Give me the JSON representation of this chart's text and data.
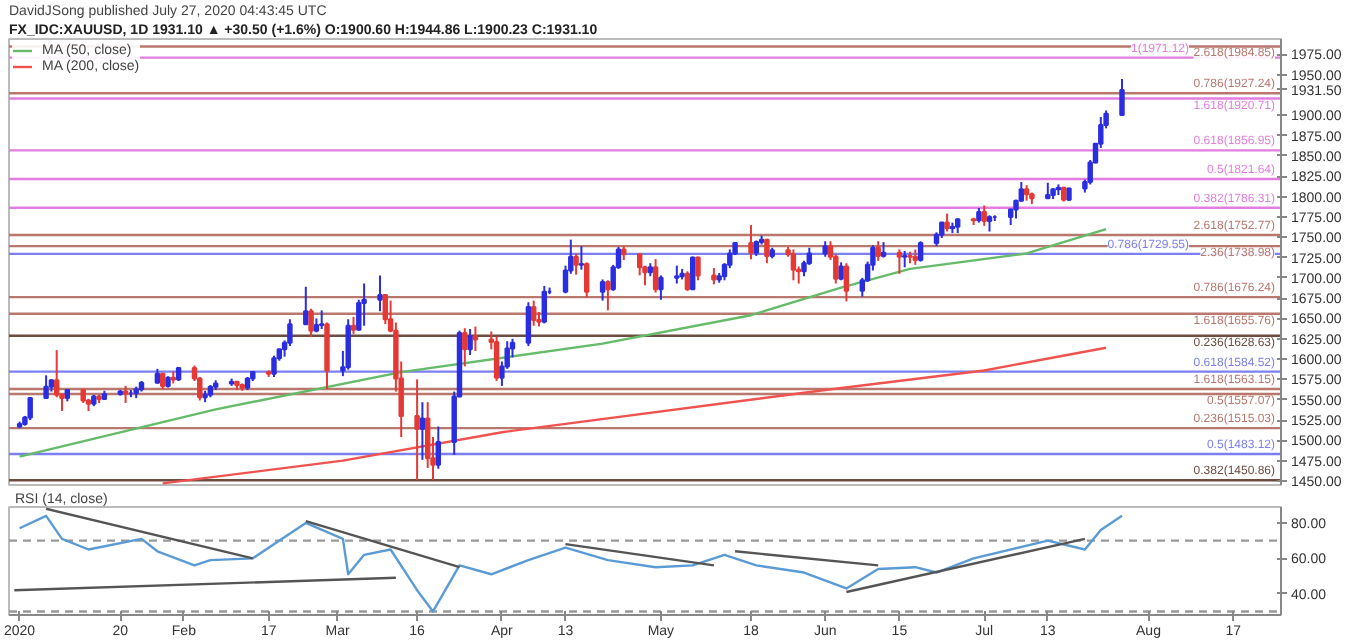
{
  "chart_data": [
    {
      "type": "candlestick",
      "title": "DavidJSong published July 27, 2020 04:43:45 UTC",
      "subtitle": "FX_IDC:XAUUSD, 1D 1931.10 ▲ +30.50 (+1.6%) O:1900.60 H:1944.86 L:1900.23 C:1931.10",
      "x": [
        "2020-01-01",
        "2020-01-02",
        "2020-01-03",
        "2020-01-06",
        "2020-01-07",
        "2020-01-08",
        "2020-01-09",
        "2020-01-10",
        "2020-01-13",
        "2020-01-14",
        "2020-01-15",
        "2020-01-16",
        "2020-01-17",
        "2020-01-20",
        "2020-01-21",
        "2020-01-22",
        "2020-01-23",
        "2020-01-24",
        "2020-01-27",
        "2020-01-28",
        "2020-01-29",
        "2020-01-30",
        "2020-01-31",
        "2020-02-03",
        "2020-02-04",
        "2020-02-05",
        "2020-02-06",
        "2020-02-07",
        "2020-02-10",
        "2020-02-11",
        "2020-02-12",
        "2020-02-13",
        "2020-02-14",
        "2020-02-17",
        "2020-02-18",
        "2020-02-19",
        "2020-02-20",
        "2020-02-21",
        "2020-02-24",
        "2020-02-25",
        "2020-02-26",
        "2020-02-27",
        "2020-02-28",
        "2020-03-02",
        "2020-03-03",
        "2020-03-04",
        "2020-03-05",
        "2020-03-06",
        "2020-03-09",
        "2020-03-10",
        "2020-03-11",
        "2020-03-12",
        "2020-03-13",
        "2020-03-16",
        "2020-03-17",
        "2020-03-18",
        "2020-03-19",
        "2020-03-20",
        "2020-03-23",
        "2020-03-24",
        "2020-03-25",
        "2020-03-26",
        "2020-03-27",
        "2020-03-30",
        "2020-03-31",
        "2020-04-01",
        "2020-04-02",
        "2020-04-03",
        "2020-04-06",
        "2020-04-07",
        "2020-04-08",
        "2020-04-09",
        "2020-04-10",
        "2020-04-13",
        "2020-04-14",
        "2020-04-15",
        "2020-04-16",
        "2020-04-17",
        "2020-04-20",
        "2020-04-21",
        "2020-04-22",
        "2020-04-23",
        "2020-04-24",
        "2020-04-27",
        "2020-04-28",
        "2020-04-29",
        "2020-04-30",
        "2020-05-01",
        "2020-05-04",
        "2020-05-05",
        "2020-05-06",
        "2020-05-07",
        "2020-05-08",
        "2020-05-11",
        "2020-05-12",
        "2020-05-13",
        "2020-05-14",
        "2020-05-15",
        "2020-05-18",
        "2020-05-19",
        "2020-05-20",
        "2020-05-21",
        "2020-05-22",
        "2020-05-25",
        "2020-05-26",
        "2020-05-27",
        "2020-05-28",
        "2020-05-29",
        "2020-06-01",
        "2020-06-02",
        "2020-06-03",
        "2020-06-04",
        "2020-06-05",
        "2020-06-08",
        "2020-06-09",
        "2020-06-10",
        "2020-06-11",
        "2020-06-12",
        "2020-06-15",
        "2020-06-16",
        "2020-06-17",
        "2020-06-18",
        "2020-06-19",
        "2020-06-22",
        "2020-06-23",
        "2020-06-24",
        "2020-06-25",
        "2020-06-26",
        "2020-06-29",
        "2020-06-30",
        "2020-07-01",
        "2020-07-02",
        "2020-07-03",
        "2020-07-06",
        "2020-07-07",
        "2020-07-08",
        "2020-07-09",
        "2020-07-10",
        "2020-07-13",
        "2020-07-14",
        "2020-07-15",
        "2020-07-16",
        "2020-07-17",
        "2020-07-20",
        "2020-07-21",
        "2020-07-22",
        "2020-07-23",
        "2020-07-24",
        "2020-07-27"
      ],
      "ohlc": [
        [
          1517,
          1523,
          1515,
          1520
        ],
        [
          1520,
          1530,
          1518,
          1528
        ],
        [
          1528,
          1553,
          1525,
          1552
        ],
        [
          1552,
          1580,
          1552,
          1566
        ],
        [
          1566,
          1575,
          1560,
          1574
        ],
        [
          1574,
          1611,
          1553,
          1556
        ],
        [
          1556,
          1558,
          1536,
          1552
        ],
        [
          1552,
          1563,
          1548,
          1562
        ],
        [
          1562,
          1563,
          1546,
          1549
        ],
        [
          1549,
          1551,
          1536,
          1545
        ],
        [
          1545,
          1556,
          1542,
          1554
        ],
        [
          1554,
          1556,
          1546,
          1551
        ],
        [
          1551,
          1561,
          1550,
          1557
        ],
        [
          1557,
          1562,
          1555,
          1560
        ],
        [
          1560,
          1567,
          1546,
          1558
        ],
        [
          1558,
          1562,
          1553,
          1558
        ],
        [
          1558,
          1566,
          1552,
          1563
        ],
        [
          1563,
          1573,
          1560,
          1571
        ],
        [
          1571,
          1588,
          1570,
          1582
        ],
        [
          1582,
          1583,
          1563,
          1567
        ],
        [
          1567,
          1579,
          1565,
          1577
        ],
        [
          1577,
          1585,
          1570,
          1575
        ],
        [
          1575,
          1589,
          1573,
          1589
        ],
        [
          1589,
          1592,
          1573,
          1576
        ],
        [
          1576,
          1578,
          1549,
          1553
        ],
        [
          1553,
          1561,
          1547,
          1556
        ],
        [
          1556,
          1568,
          1553,
          1566
        ],
        [
          1566,
          1574,
          1562,
          1570
        ],
        [
          1570,
          1576,
          1567,
          1572
        ],
        [
          1572,
          1573,
          1562,
          1568
        ],
        [
          1568,
          1570,
          1561,
          1565
        ],
        [
          1565,
          1578,
          1562,
          1576
        ],
        [
          1576,
          1585,
          1573,
          1584
        ],
        [
          1584,
          1586,
          1578,
          1582
        ],
        [
          1582,
          1604,
          1578,
          1601
        ],
        [
          1601,
          1612,
          1598,
          1612
        ],
        [
          1612,
          1623,
          1603,
          1620
        ],
        [
          1620,
          1649,
          1616,
          1643
        ],
        [
          1643,
          1689,
          1642,
          1659
        ],
        [
          1659,
          1662,
          1627,
          1635
        ],
        [
          1635,
          1650,
          1633,
          1642
        ],
        [
          1642,
          1660,
          1637,
          1643
        ],
        [
          1643,
          1645,
          1563,
          1586
        ],
        [
          1586,
          1610,
          1579,
          1590
        ],
        [
          1590,
          1649,
          1587,
          1641
        ],
        [
          1641,
          1652,
          1631,
          1636
        ],
        [
          1636,
          1673,
          1635,
          1669
        ],
        [
          1669,
          1693,
          1641,
          1673
        ],
        [
          1673,
          1703,
          1659,
          1679
        ],
        [
          1679,
          1680,
          1643,
          1649
        ],
        [
          1649,
          1672,
          1633,
          1635
        ],
        [
          1635,
          1645,
          1560,
          1576
        ],
        [
          1576,
          1597,
          1504,
          1530
        ],
        [
          1530,
          1575,
          1451,
          1514
        ],
        [
          1514,
          1547,
          1476,
          1527
        ],
        [
          1527,
          1547,
          1466,
          1478
        ],
        [
          1478,
          1504,
          1451,
          1470
        ],
        [
          1470,
          1517,
          1465,
          1498
        ],
        [
          1498,
          1560,
          1482,
          1554
        ],
        [
          1554,
          1635,
          1553,
          1632
        ],
        [
          1632,
          1638,
          1591,
          1612
        ],
        [
          1612,
          1637,
          1605,
          1628
        ],
        [
          1628,
          1640,
          1610,
          1624
        ],
        [
          1624,
          1634,
          1612,
          1621
        ],
        [
          1621,
          1628,
          1573,
          1577
        ],
        [
          1577,
          1597,
          1567,
          1591
        ],
        [
          1591,
          1622,
          1588,
          1613
        ],
        [
          1613,
          1625,
          1602,
          1620
        ],
        [
          1620,
          1670,
          1616,
          1664
        ],
        [
          1664,
          1672,
          1641,
          1648
        ],
        [
          1648,
          1658,
          1640,
          1646
        ],
        [
          1646,
          1690,
          1644,
          1683
        ],
        [
          1683,
          1688,
          1680,
          1683
        ],
        [
          1683,
          1715,
          1681,
          1709
        ],
        [
          1709,
          1747,
          1705,
          1726
        ],
        [
          1726,
          1730,
          1704,
          1716
        ],
        [
          1716,
          1739,
          1710,
          1717
        ],
        [
          1717,
          1719,
          1676,
          1683
        ],
        [
          1683,
          1698,
          1672,
          1695
        ],
        [
          1695,
          1697,
          1660,
          1686
        ],
        [
          1686,
          1716,
          1684,
          1713
        ],
        [
          1713,
          1738,
          1711,
          1735
        ],
        [
          1735,
          1739,
          1722,
          1729
        ],
        [
          1729,
          1730,
          1703,
          1713
        ],
        [
          1713,
          1715,
          1691,
          1707
        ],
        [
          1707,
          1718,
          1702,
          1713
        ],
        [
          1713,
          1723,
          1682,
          1686
        ],
        [
          1686,
          1703,
          1673,
          1700
        ],
        [
          1700,
          1715,
          1693,
          1702
        ],
        [
          1702,
          1711,
          1698,
          1705
        ],
        [
          1705,
          1708,
          1684,
          1686
        ],
        [
          1686,
          1726,
          1685,
          1725
        ],
        [
          1725,
          1726,
          1697,
          1703
        ],
        [
          1703,
          1712,
          1692,
          1698
        ],
        [
          1698,
          1706,
          1694,
          1702
        ],
        [
          1702,
          1718,
          1697,
          1716
        ],
        [
          1716,
          1735,
          1712,
          1730
        ],
        [
          1730,
          1744,
          1728,
          1743
        ],
        [
          1743,
          1765,
          1723,
          1731
        ],
        [
          1731,
          1746,
          1727,
          1744
        ],
        [
          1744,
          1752,
          1741,
          1747
        ],
        [
          1747,
          1748,
          1718,
          1727
        ],
        [
          1727,
          1737,
          1724,
          1734
        ],
        [
          1734,
          1738,
          1726,
          1729
        ],
        [
          1729,
          1735,
          1697,
          1710
        ],
        [
          1710,
          1714,
          1693,
          1708
        ],
        [
          1708,
          1721,
          1702,
          1718
        ],
        [
          1718,
          1737,
          1716,
          1730
        ],
        [
          1730,
          1745,
          1726,
          1739
        ],
        [
          1739,
          1745,
          1722,
          1726
        ],
        [
          1726,
          1729,
          1693,
          1699
        ],
        [
          1699,
          1719,
          1697,
          1714
        ],
        [
          1714,
          1718,
          1671,
          1684
        ],
        [
          1684,
          1700,
          1677,
          1697
        ],
        [
          1697,
          1720,
          1695,
          1716
        ],
        [
          1716,
          1740,
          1709,
          1737
        ],
        [
          1737,
          1745,
          1721,
          1727
        ],
        [
          1727,
          1744,
          1725,
          1731
        ],
        [
          1731,
          1735,
          1705,
          1726
        ],
        [
          1726,
          1733,
          1713,
          1727
        ],
        [
          1727,
          1732,
          1718,
          1726
        ],
        [
          1726,
          1735,
          1716,
          1722
        ],
        [
          1722,
          1745,
          1720,
          1743
        ],
        [
          1743,
          1756,
          1739,
          1753
        ],
        [
          1753,
          1768,
          1749,
          1768
        ],
        [
          1768,
          1779,
          1757,
          1761
        ],
        [
          1761,
          1768,
          1755,
          1763
        ],
        [
          1763,
          1773,
          1755,
          1772
        ],
        [
          1772,
          1774,
          1765,
          1771
        ],
        [
          1771,
          1786,
          1768,
          1781
        ],
        [
          1781,
          1789,
          1764,
          1770
        ],
        [
          1770,
          1777,
          1757,
          1775
        ],
        [
          1775,
          1777,
          1770,
          1775
        ],
        [
          1775,
          1785,
          1765,
          1784
        ],
        [
          1784,
          1796,
          1773,
          1795
        ],
        [
          1795,
          1818,
          1794,
          1809
        ],
        [
          1809,
          1814,
          1795,
          1803
        ],
        [
          1803,
          1805,
          1791,
          1798
        ],
        [
          1798,
          1817,
          1798,
          1802
        ],
        [
          1802,
          1810,
          1797,
          1809
        ],
        [
          1809,
          1815,
          1802,
          1811
        ],
        [
          1811,
          1812,
          1794,
          1796
        ],
        [
          1796,
          1811,
          1795,
          1810
        ],
        [
          1810,
          1821,
          1805,
          1818
        ],
        [
          1818,
          1845,
          1815,
          1842
        ],
        [
          1842,
          1866,
          1841,
          1865
        ],
        [
          1865,
          1898,
          1860,
          1888
        ],
        [
          1888,
          1906,
          1884,
          1902
        ],
        [
          1900.6,
          1944.86,
          1900.23,
          1931.1
        ]
      ],
      "series": [
        {
          "type": "line",
          "name": "MA (50, close)",
          "color": "#66bb6a",
          "x": [
            "2020-01-01",
            "2020-02-07",
            "2020-03-13",
            "2020-04-20",
            "2020-05-18",
            "2020-06-04",
            "2020-06-17",
            "2020-07-09",
            "2020-07-24"
          ],
          "values": [
            1480,
            1538,
            1584,
            1619,
            1654,
            1688,
            1711,
            1730,
            1760
          ]
        },
        {
          "type": "line",
          "name": "MA (200, close)",
          "color": "#ef5350",
          "x": [
            "2020-01-28",
            "2020-03-02",
            "2020-04-01",
            "2020-06-01",
            "2020-07-01",
            "2020-07-24"
          ],
          "values": [
            1447,
            1475,
            1510,
            1562,
            1586,
            1614
          ]
        }
      ],
      "xlim": [
        "2019-12-30",
        "2020-08-26"
      ],
      "ylim": [
        1445,
        1994
      ],
      "yticks": [
        {
          "value": 1450,
          "label": "1450.00"
        },
        {
          "value": 1475,
          "label": "1475.00"
        },
        {
          "value": 1500,
          "label": "1500.00"
        },
        {
          "value": 1525,
          "label": "1525.00"
        },
        {
          "value": 1550,
          "label": "1550.00"
        },
        {
          "value": 1575,
          "label": "1575.00"
        },
        {
          "value": 1600,
          "label": "1600.00"
        },
        {
          "value": 1625,
          "label": "1625.00"
        },
        {
          "value": 1650,
          "label": "1650.00"
        },
        {
          "value": 1675,
          "label": "1675.00"
        },
        {
          "value": 1700,
          "label": "1700.00"
        },
        {
          "value": 1725,
          "label": "1725.00"
        },
        {
          "value": 1750,
          "label": "1750.00"
        },
        {
          "value": 1775,
          "label": "1775.00"
        },
        {
          "value": 1800,
          "label": "1800.00"
        },
        {
          "value": 1825,
          "label": "1825.00"
        },
        {
          "value": 1850,
          "label": "1850.00"
        },
        {
          "value": 1875,
          "label": "1875.00"
        },
        {
          "value": 1900,
          "label": "1900.00"
        },
        {
          "value": 1931.5,
          "label": "1931.50"
        },
        {
          "value": 1950,
          "label": "1950.00"
        },
        {
          "value": 1975,
          "label": "1975.00"
        }
      ],
      "tick_labels": "y",
      "legend": "top left",
      "ref_lines": [
        {
          "axis": "y",
          "value": 1984.85,
          "label": "2.618(1984.85)",
          "color": "#b9776e"
        },
        {
          "axis": "y",
          "value": 1971.12,
          "label": "1(1971.12)",
          "color": "#e27ee0"
        },
        {
          "axis": "y",
          "value": 1927.24,
          "label": "0.786(1927.24)",
          "color": "#b9776e"
        },
        {
          "axis": "y",
          "value": 1920.71,
          "label": "1.618(1920.71)",
          "color": "#e27ee0"
        },
        {
          "axis": "y",
          "value": 1856.95,
          "label": "0.618(1856.95)",
          "color": "#e27ee0"
        },
        {
          "axis": "y",
          "value": 1821.64,
          "label": "0.5(1821.64)",
          "color": "#e27ee0"
        },
        {
          "axis": "y",
          "value": 1786.31,
          "label": "0.382(1786.31)",
          "color": "#e27ee0"
        },
        {
          "axis": "y",
          "value": 1752.77,
          "label": "2.618(1752.77)",
          "color": "#b9776e"
        },
        {
          "axis": "y",
          "value": 1738.98,
          "label": "2.36(1738.98)",
          "color": "#b9776e"
        },
        {
          "axis": "y",
          "value": 1729.55,
          "label": "0.786(1729.55)",
          "color": "#7b7ff0"
        },
        {
          "axis": "y",
          "value": 1676.24,
          "label": "0.786(1676.24)",
          "color": "#b9776e"
        },
        {
          "axis": "y",
          "value": 1655.76,
          "label": "1.618(1655.76)",
          "color": "#b9776e"
        },
        {
          "axis": "y",
          "value": 1628.63,
          "label": "0.236(1628.63)",
          "color": "#6d4c41"
        },
        {
          "axis": "y",
          "value": 1584.52,
          "label": "0.618(1584.52)",
          "color": "#7b7ff0"
        },
        {
          "axis": "y",
          "value": 1563.15,
          "label": "1.618(1563.15)",
          "color": "#b9776e"
        },
        {
          "axis": "y",
          "value": 1557.07,
          "label": "0.5(1557.07)",
          "color": "#b9776e"
        },
        {
          "axis": "y",
          "value": 1515.03,
          "label": "0.236(1515.03)",
          "color": "#b9776e"
        },
        {
          "axis": "y",
          "value": 1483.12,
          "label": "0.5(1483.12)",
          "color": "#7b7ff0"
        },
        {
          "axis": "y",
          "value": 1450.86,
          "label": "0.382(1450.86)",
          "color": "#6d4c41"
        }
      ]
    },
    {
      "type": "line",
      "title": "RSI (14, close)",
      "series": [
        {
          "type": "line",
          "color": "#5b9bd5",
          "x": [
            "2020-01-01",
            "2020-01-06",
            "2020-01-09",
            "2020-01-14",
            "2020-01-24",
            "2020-01-27",
            "2020-02-03",
            "2020-02-06",
            "2020-02-14",
            "2020-02-24",
            "2020-03-02",
            "2020-03-03",
            "2020-03-06",
            "2020-03-11",
            "2020-03-16",
            "2020-03-19",
            "2020-03-24",
            "2020-03-30",
            "2020-04-06",
            "2020-04-13",
            "2020-04-21",
            "2020-04-30",
            "2020-05-07",
            "2020-05-13",
            "2020-05-19",
            "2020-05-28",
            "2020-06-05",
            "2020-06-11",
            "2020-06-18",
            "2020-06-22",
            "2020-06-29",
            "2020-07-13",
            "2020-07-20",
            "2020-07-23",
            "2020-07-27"
          ],
          "values": [
            77,
            84,
            71,
            65,
            71,
            64,
            56,
            59,
            60,
            80,
            71,
            51,
            62,
            65,
            42,
            30,
            56,
            51,
            59,
            66,
            59,
            55,
            56,
            62,
            56,
            52,
            43,
            54,
            55,
            52,
            60,
            70,
            65,
            76,
            84
          ]
        },
        {
          "type": "line",
          "color": "#555555",
          "x": [
            "2020-01-06",
            "2020-02-14"
          ],
          "values": [
            88,
            60
          ]
        },
        {
          "type": "line",
          "color": "#555555",
          "x": [
            "2019-12-31",
            "2020-03-12"
          ],
          "values": [
            42,
            49
          ]
        },
        {
          "type": "line",
          "color": "#555555",
          "x": [
            "2020-02-24",
            "2020-03-24"
          ],
          "values": [
            81,
            55
          ]
        },
        {
          "type": "line",
          "color": "#555555",
          "x": [
            "2020-04-13",
            "2020-05-11"
          ],
          "values": [
            68,
            56
          ]
        },
        {
          "type": "line",
          "color": "#555555",
          "x": [
            "2020-05-15",
            "2020-06-11"
          ],
          "values": [
            64,
            56
          ]
        },
        {
          "type": "line",
          "color": "#555555",
          "x": [
            "2020-06-05",
            "2020-07-20"
          ],
          "values": [
            41,
            71
          ]
        }
      ],
      "xlim": [
        "2019-12-30",
        "2020-08-26"
      ],
      "ylim": [
        28,
        89
      ],
      "yticks": [
        {
          "value": 40,
          "label": "40.00"
        },
        {
          "value": 60,
          "label": "60.00"
        },
        {
          "value": 80,
          "label": "80.00"
        }
      ],
      "xticks": [
        {
          "value": "2020-01-01",
          "label": "2020"
        },
        {
          "value": "2020-01-20",
          "label": "20"
        },
        {
          "value": "2020-02-01",
          "label": "Feb"
        },
        {
          "value": "2020-02-17",
          "label": "17"
        },
        {
          "value": "2020-03-01",
          "label": "Mar"
        },
        {
          "value": "2020-03-16",
          "label": "16"
        },
        {
          "value": "2020-04-01",
          "label": "Apr"
        },
        {
          "value": "2020-04-13",
          "label": "13"
        },
        {
          "value": "2020-05-01",
          "label": "May"
        },
        {
          "value": "2020-05-18",
          "label": "18"
        },
        {
          "value": "2020-06-01",
          "label": "Jun"
        },
        {
          "value": "2020-06-15",
          "label": "15"
        },
        {
          "value": "2020-07-01",
          "label": "Jul"
        },
        {
          "value": "2020-07-13",
          "label": "13"
        },
        {
          "value": "2020-08-01",
          "label": "Aug"
        },
        {
          "value": "2020-08-17",
          "label": "17"
        }
      ],
      "ref_lines": [
        {
          "axis": "y",
          "value": 70,
          "color": "#999999",
          "line_style": "dashed"
        },
        {
          "axis": "y",
          "value": 30,
          "color": "#999999",
          "line_style": "dashed"
        }
      ]
    }
  ]
}
